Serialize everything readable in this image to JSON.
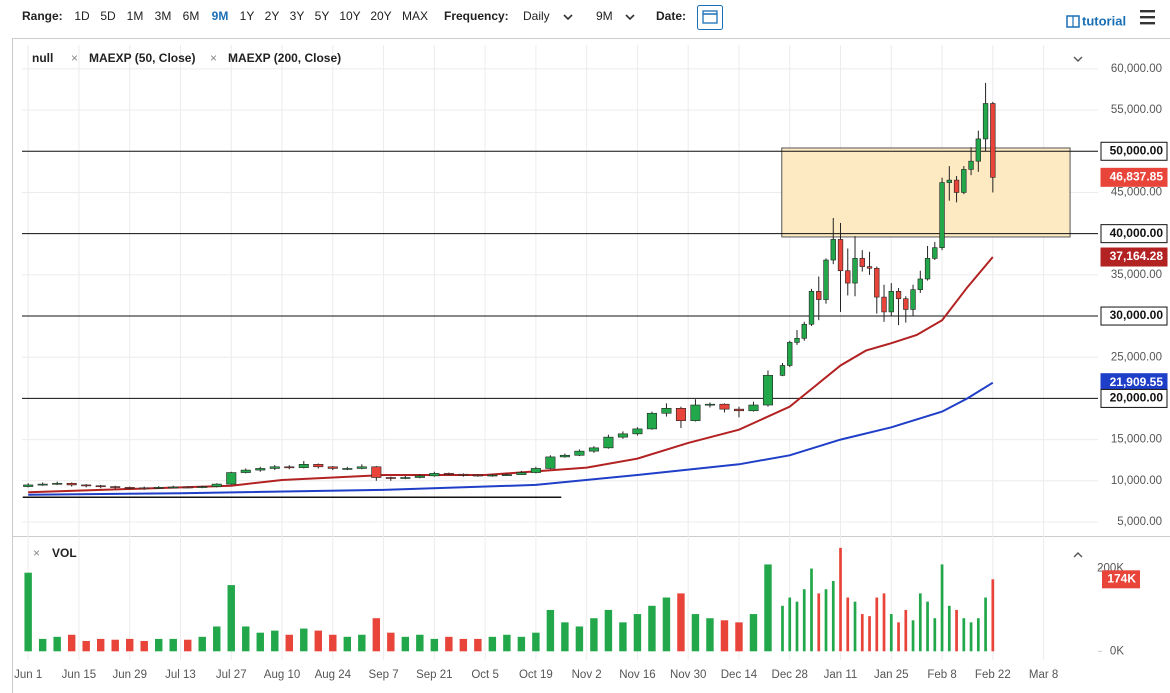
{
  "toolbar": {
    "range_label": "Range:",
    "ranges": [
      "1D",
      "5D",
      "1M",
      "3M",
      "6M",
      "9M",
      "1Y",
      "2Y",
      "3Y",
      "5Y",
      "10Y",
      "20Y",
      "MAX"
    ],
    "active_range": "9M",
    "frequency_label": "Frequency:",
    "frequency": "Daily",
    "period": "9M",
    "date_label": "Date:",
    "tutorial": "tutorial"
  },
  "chart_data": {
    "type": "candlestick",
    "name": "null",
    "up_color": "#22a84a",
    "down_color": "#e8443a",
    "xlim": [
      -1.7,
      295
    ],
    "ylim": [
      3300,
      62900
    ],
    "grid": true,
    "xticks": [
      {
        "value": 0,
        "label": "Jun 1"
      },
      {
        "value": 14,
        "label": "Jun 15"
      },
      {
        "value": 28,
        "label": "Jun 29"
      },
      {
        "value": 42,
        "label": "Jul 13"
      },
      {
        "value": 56,
        "label": "Jul 27"
      },
      {
        "value": 70,
        "label": "Aug 10"
      },
      {
        "value": 84,
        "label": "Aug 24"
      },
      {
        "value": 98,
        "label": "Sep 7"
      },
      {
        "value": 112,
        "label": "Sep 21"
      },
      {
        "value": 126,
        "label": "Oct 5"
      },
      {
        "value": 140,
        "label": "Oct 19"
      },
      {
        "value": 154,
        "label": "Nov 2"
      },
      {
        "value": 168,
        "label": "Nov 16"
      },
      {
        "value": 182,
        "label": "Nov 30"
      },
      {
        "value": 196,
        "label": "Dec 14"
      },
      {
        "value": 210,
        "label": "Dec 28"
      },
      {
        "value": 224,
        "label": "Jan 11"
      },
      {
        "value": 238,
        "label": "Jan 25"
      },
      {
        "value": 252,
        "label": "Feb 8"
      },
      {
        "value": 266,
        "label": "Feb 22"
      },
      {
        "value": 280,
        "label": "Mar 8"
      }
    ],
    "yticks": [
      {
        "value": 5000,
        "label": "5,000.00"
      },
      {
        "value": 10000,
        "label": "10,000.00"
      },
      {
        "value": 15000,
        "label": "15,000.00"
      },
      {
        "value": 20000,
        "label": "20,000.00"
      },
      {
        "value": 25000,
        "label": "25,000.00"
      },
      {
        "value": 30000,
        "label": "30,000.00"
      },
      {
        "value": 35000,
        "label": "35,000.00"
      },
      {
        "value": 40000,
        "label": "40,000.00"
      },
      {
        "value": 45000,
        "label": "45,000.00"
      },
      {
        "value": 50000,
        "label": "50,000.00"
      },
      {
        "value": 55000,
        "label": "55,000.00"
      },
      {
        "value": 60000,
        "label": "60,000.00"
      }
    ],
    "x": [
      0,
      4,
      8,
      12,
      16,
      20,
      24,
      28,
      32,
      36,
      40,
      44,
      48,
      52,
      56,
      60,
      64,
      68,
      72,
      76,
      80,
      84,
      88,
      92,
      96,
      100,
      104,
      108,
      112,
      116,
      120,
      124,
      128,
      132,
      136,
      140,
      144,
      148,
      152,
      156,
      160,
      164,
      168,
      172,
      176,
      180,
      184,
      188,
      192,
      196,
      200,
      204,
      208,
      210,
      212,
      214,
      216,
      218,
      220,
      222,
      224,
      226,
      228,
      230,
      232,
      234,
      236,
      238,
      240,
      242,
      244,
      246,
      248,
      250,
      252,
      254,
      256,
      258,
      260,
      262,
      264,
      266
    ],
    "open": [
      9300,
      9500,
      9600,
      9700,
      9500,
      9400,
      9300,
      9200,
      9150,
      9100,
      9200,
      9250,
      9200,
      9300,
      9600,
      11000,
      11300,
      11500,
      11700,
      11600,
      12000,
      11700,
      11500,
      11500,
      11700,
      10400,
      10300,
      10400,
      10600,
      10900,
      10800,
      10700,
      10600,
      10700,
      10750,
      11000,
      11500,
      12900,
      13100,
      13600,
      14000,
      15300,
      15700,
      16300,
      18200,
      18800,
      17300,
      19200,
      19300,
      18700,
      18500,
      19200,
      22800,
      24000,
      26800,
      27300,
      29000,
      33000,
      32000,
      36800,
      39300,
      35500,
      34000,
      37000,
      36000,
      35800,
      32300,
      30500,
      33000,
      32100,
      30800,
      33200,
      34500,
      37000,
      38300,
      46200,
      46500,
      45000,
      47800,
      48800,
      51500,
      55800
    ],
    "high": [
      9700,
      9800,
      9900,
      9800,
      9600,
      9500,
      9400,
      9300,
      9300,
      9350,
      9400,
      9350,
      9400,
      9700,
      11100,
      11500,
      11700,
      11900,
      11900,
      12400,
      12100,
      11800,
      11700,
      12000,
      11800,
      10500,
      10600,
      10800,
      11100,
      11000,
      10900,
      10800,
      10800,
      10900,
      11200,
      11700,
      13100,
      13300,
      13800,
      14200,
      15600,
      16000,
      16500,
      18400,
      19400,
      19000,
      19900,
      19500,
      19400,
      19000,
      19600,
      23400,
      24300,
      27000,
      28300,
      29300,
      33300,
      34800,
      37000,
      41900,
      41300,
      38200,
      39700,
      38000,
      37800,
      36000,
      33800,
      34000,
      33400,
      32400,
      33800,
      35500,
      38500,
      39000,
      46800,
      48200,
      47000,
      48200,
      50500,
      52500,
      58300,
      56000
    ],
    "low": [
      9200,
      9400,
      9500,
      9300,
      9200,
      9100,
      9000,
      9000,
      8900,
      9000,
      9100,
      9100,
      9100,
      9200,
      9500,
      10900,
      11100,
      11300,
      11400,
      11500,
      11500,
      11300,
      11300,
      11400,
      10000,
      10000,
      10200,
      10300,
      10500,
      10700,
      10500,
      10500,
      10500,
      10600,
      10700,
      10900,
      11400,
      12800,
      13000,
      13400,
      13900,
      15100,
      15500,
      16200,
      17800,
      16400,
      17200,
      18900,
      18300,
      17700,
      18400,
      19000,
      22700,
      23800,
      26500,
      27000,
      28800,
      29500,
      31500,
      36300,
      30500,
      32500,
      32400,
      35400,
      35000,
      30300,
      29300,
      30000,
      28900,
      29200,
      30000,
      32800,
      34300,
      36800,
      38000,
      44000,
      43800,
      44800,
      47100,
      47500,
      50000,
      45000
    ],
    "close": [
      9500,
      9600,
      9700,
      9500,
      9400,
      9300,
      9200,
      9150,
      9100,
      9200,
      9250,
      9200,
      9300,
      9600,
      11000,
      11300,
      11500,
      11700,
      11600,
      12000,
      11700,
      11500,
      11500,
      11700,
      10400,
      10300,
      10400,
      10600,
      10900,
      10800,
      10700,
      10600,
      10700,
      10750,
      11000,
      11500,
      12900,
      13100,
      13600,
      14000,
      15300,
      15700,
      16300,
      18200,
      18800,
      17300,
      19200,
      19300,
      18700,
      18500,
      19200,
      22800,
      24000,
      26800,
      27300,
      29000,
      33000,
      32000,
      36800,
      39300,
      35500,
      34000,
      37000,
      36000,
      35800,
      32300,
      30500,
      33000,
      32100,
      30800,
      33200,
      34500,
      37000,
      38300,
      46200,
      46500,
      45000,
      47800,
      48800,
      51500,
      55800,
      46837.85
    ],
    "series": [
      {
        "name": "MAEXP (50, Close)",
        "color": "#b22222",
        "x": [
          0,
          28,
          56,
          70,
          98,
          126,
          154,
          168,
          182,
          196,
          210,
          217,
          224,
          231,
          238,
          245,
          252,
          259,
          266
        ],
        "values": [
          8600,
          9000,
          9400,
          10100,
          10700,
          10700,
          11600,
          12700,
          14600,
          16200,
          19000,
          21500,
          24000,
          25800,
          26700,
          27700,
          29500,
          33500,
          37164.28
        ]
      },
      {
        "name": "MAEXP (200, Close)",
        "color": "#1f3fc8",
        "x": [
          0,
          42,
          98,
          140,
          168,
          196,
          210,
          224,
          238,
          252,
          259,
          266
        ],
        "values": [
          8300,
          8500,
          8900,
          9500,
          10700,
          12000,
          13100,
          15000,
          16500,
          18400,
          20000,
          21909.55
        ]
      }
    ],
    "trendline": {
      "x": [
        -1.5,
        147
      ],
      "values": [
        8000,
        8000
      ],
      "color": "#111111"
    },
    "zone": {
      "x": [
        207.8,
        287.3
      ],
      "values": [
        39600,
        50400
      ],
      "color": "#fde9c2"
    },
    "price_labels": [
      {
        "value": 50000,
        "label": "50,000.00",
        "color": "#ffffff",
        "text_color": "#111111",
        "line": true
      },
      {
        "value": 46837.85,
        "label": "46,837.85",
        "color": "#e8443a",
        "text_color": "#ffffff",
        "line": false
      },
      {
        "value": 40000,
        "label": "40,000.00",
        "color": "#ffffff",
        "text_color": "#111111",
        "line": true
      },
      {
        "value": 37164.28,
        "label": "37,164.28",
        "color": "#b22222",
        "text_color": "#ffffff",
        "line": false
      },
      {
        "value": 30000,
        "label": "30,000.00",
        "color": "#ffffff",
        "text_color": "#111111",
        "line": true
      },
      {
        "value": 21909.55,
        "label": "21,909.55",
        "color": "#1f3fc8",
        "text_color": "#ffffff",
        "line": false
      },
      {
        "value": 20000,
        "label": "20,000.00",
        "color": "#ffffff",
        "text_color": "#111111",
        "line": true
      }
    ],
    "volume": {
      "name": "VOL",
      "ylim": [
        -21000,
        269000
      ],
      "yticks": [
        {
          "value": 0,
          "label": "0K"
        },
        {
          "value": 200000,
          "label": "200K"
        }
      ],
      "last_label": "174K",
      "values": [
        190000,
        30000,
        35000,
        40000,
        25000,
        30000,
        28000,
        30000,
        25000,
        30000,
        30000,
        28000,
        35000,
        60000,
        160000,
        60000,
        45000,
        50000,
        40000,
        55000,
        50000,
        40000,
        35000,
        40000,
        80000,
        45000,
        35000,
        40000,
        30000,
        35000,
        30000,
        30000,
        35000,
        40000,
        35000,
        45000,
        100000,
        70000,
        60000,
        80000,
        100000,
        70000,
        90000,
        110000,
        130000,
        140000,
        90000,
        80000,
        75000,
        70000,
        90000,
        210000,
        110000,
        130000,
        120000,
        150000,
        200000,
        140000,
        150000,
        170000,
        250000,
        130000,
        120000,
        90000,
        85000,
        130000,
        140000,
        90000,
        70000,
        100000,
        75000,
        140000,
        120000,
        80000,
        210000,
        110000,
        100000,
        80000,
        70000,
        80000,
        130000,
        174000
      ]
    }
  }
}
